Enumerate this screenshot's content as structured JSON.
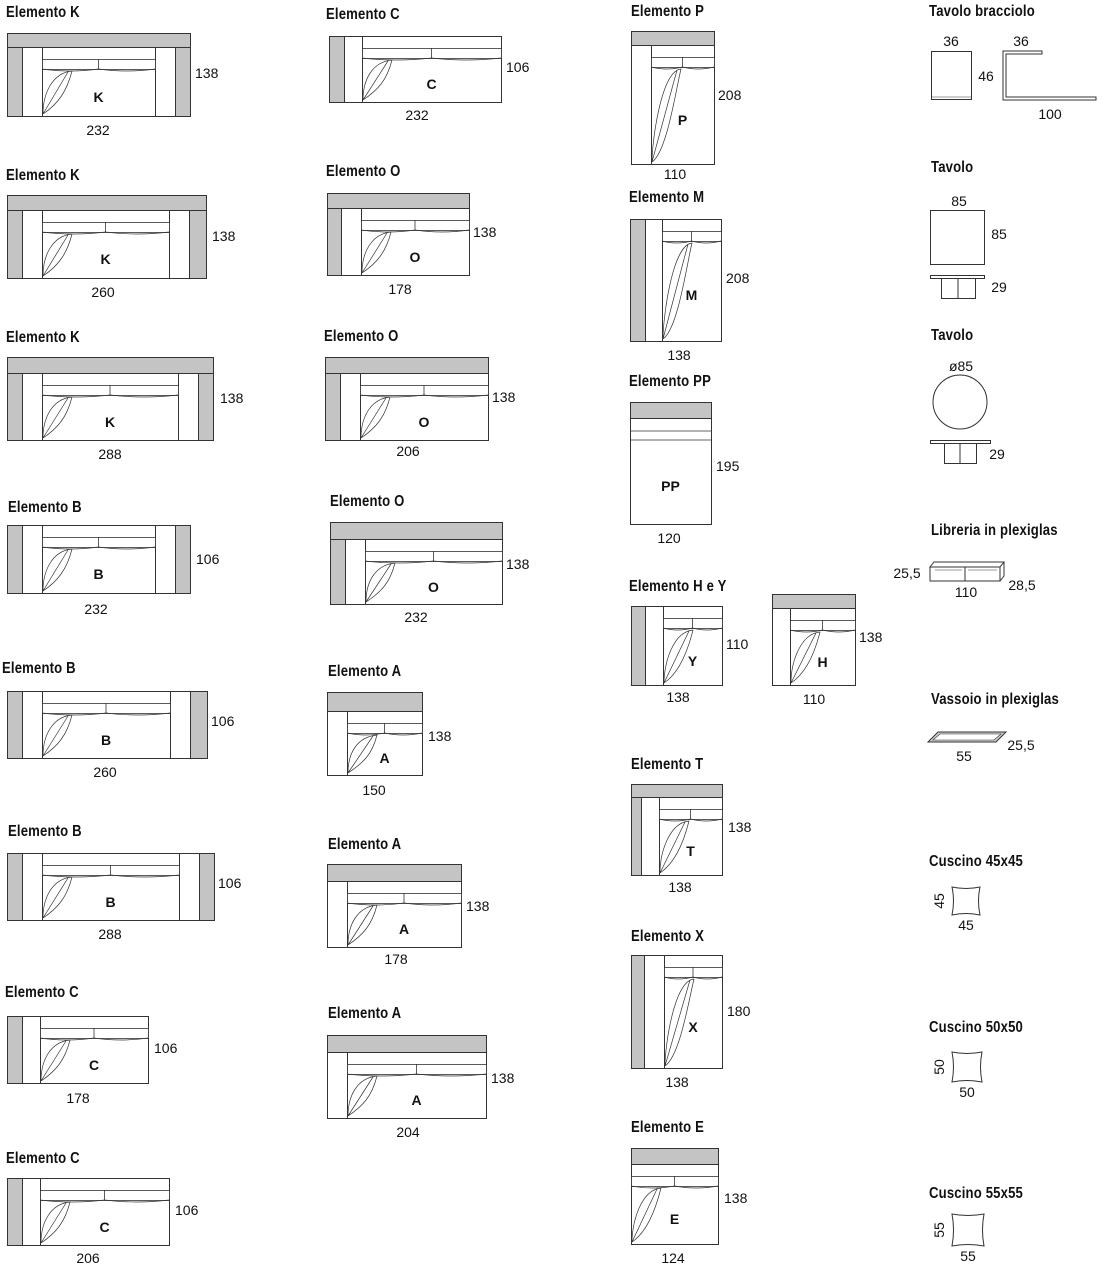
{
  "colors": {
    "arm_grey": "#c4c4c4",
    "line": "#333333"
  },
  "elements": [
    {
      "title": "Elemento K",
      "letter": "K",
      "width": "232",
      "depth": "138"
    },
    {
      "title": "Elemento K",
      "letter": "K",
      "width": "260",
      "depth": "138"
    },
    {
      "title": "Elemento K",
      "letter": "K",
      "width": "288",
      "depth": "138"
    },
    {
      "title": "Elemento B",
      "letter": "B",
      "width": "232",
      "depth": "106"
    },
    {
      "title": "Elemento B",
      "letter": "B",
      "width": "260",
      "depth": "106"
    },
    {
      "title": "Elemento B",
      "letter": "B",
      "width": "288",
      "depth": "106"
    },
    {
      "title": "Elemento C",
      "letter": "C",
      "width": "178",
      "depth": "106"
    },
    {
      "title": "Elemento C",
      "letter": "C",
      "width": "206",
      "depth": "106"
    },
    {
      "title": "Elemento C",
      "letter": "C",
      "width": "232",
      "depth": "106"
    },
    {
      "title": "Elemento O",
      "letter": "O",
      "width": "178",
      "depth": "138"
    },
    {
      "title": "Elemento O",
      "letter": "O",
      "width": "206",
      "depth": "138"
    },
    {
      "title": "Elemento O",
      "letter": "O",
      "width": "232",
      "depth": "138"
    },
    {
      "title": "Elemento A",
      "letter": "A",
      "width": "150",
      "depth": "138"
    },
    {
      "title": "Elemento A",
      "letter": "A",
      "width": "178",
      "depth": "138"
    },
    {
      "title": "Elemento A",
      "letter": "A",
      "width": "204",
      "depth": "138"
    },
    {
      "title": "Elemento P",
      "letter": "P",
      "width": "110",
      "depth": "208"
    },
    {
      "title": "Elemento M",
      "letter": "M",
      "width": "138",
      "depth": "208"
    },
    {
      "title": "Elemento PP",
      "letter": "PP",
      "width": "120",
      "depth": "195"
    },
    {
      "title": "Elemento H e Y",
      "letter": "Y",
      "width": "138",
      "depth": "110"
    },
    {
      "title": "",
      "letter": "H",
      "width": "110",
      "depth": "138"
    },
    {
      "title": "Elemento T",
      "letter": "T",
      "width": "138",
      "depth": "138"
    },
    {
      "title": "Elemento X",
      "letter": "X",
      "width": "138",
      "depth": "180"
    },
    {
      "title": "Elemento E",
      "letter": "E",
      "width": "124",
      "depth": "138"
    }
  ],
  "accessories": {
    "tavolo_bracciolo": {
      "title": "Tavolo bracciolo",
      "w1": "36",
      "w2": "36",
      "h": "46",
      "len": "100"
    },
    "tavolo_square": {
      "title": "Tavolo",
      "w": "85",
      "d": "85",
      "h": "29"
    },
    "tavolo_round": {
      "title": "Tavolo",
      "diam": "ø85",
      "h": "29"
    },
    "libreria": {
      "title": "Libreria in plexiglas",
      "left": "25,5",
      "w": "110",
      "right": "28,5"
    },
    "vassoio": {
      "title": "Vassoio in plexiglas",
      "w": "55",
      "h": "25,5"
    },
    "cuscino45": {
      "title": "Cuscino 45x45",
      "side": "45",
      "bottom": "45"
    },
    "cuscino50": {
      "title": "Cuscino 50x50",
      "side": "50",
      "bottom": "50"
    },
    "cuscino55": {
      "title": "Cuscino 55x55",
      "side": "55",
      "bottom": "55"
    }
  }
}
